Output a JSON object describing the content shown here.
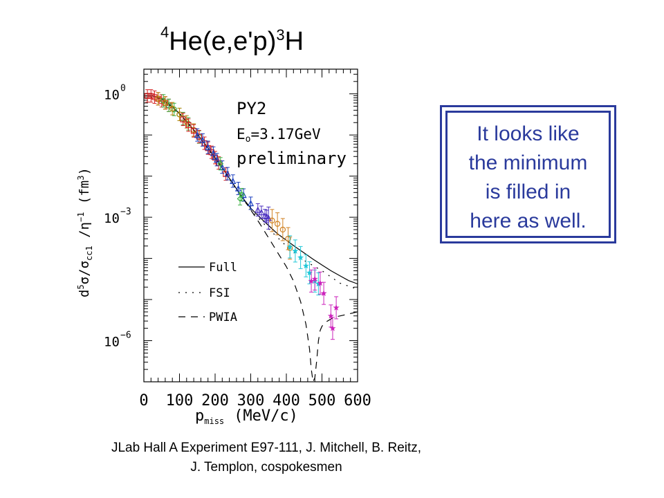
{
  "title": {
    "pre_sup": "4",
    "main": "He(e,e'p)",
    "post_sub": "3",
    "tail": "H"
  },
  "callout": {
    "lines": [
      "It looks like",
      "the minimum",
      "is filled  in",
      "here as well."
    ]
  },
  "credit": {
    "line1": "JLab Hall A Experiment E97-111, J. Mitchell, B. Reitz,",
    "line2": "J. Templon, cospokesmen"
  },
  "chart_data": {
    "type": "scatter",
    "xlabel": "p_miss (MeV/c)",
    "ylabel": "d^5σ/σ_cc1 / η^-1 (fm^3)",
    "xlim": [
      0,
      600
    ],
    "ylim_log10": [
      -7,
      0.6
    ],
    "x_ticks": [
      "0",
      "100",
      "200",
      "300",
      "400",
      "500",
      "600"
    ],
    "y_ticks": [
      {
        "value": 0,
        "label": "10",
        "exp": "0"
      },
      {
        "value": -3,
        "label": "10",
        "exp": "−3"
      },
      {
        "value": -6,
        "label": "10",
        "exp": "−6"
      }
    ],
    "annotation": {
      "kinematics": "PY2",
      "energy_label": "E",
      "energy_sub": "o",
      "energy_value": "=3.17GeV",
      "status": "preliminary"
    },
    "legend": [
      {
        "name": "Full",
        "style": "solid"
      },
      {
        "name": "FSI",
        "style": "dotted"
      },
      {
        "name": "PWIA",
        "style": "dashed"
      }
    ],
    "curves": [
      {
        "name": "Full",
        "style": "solid",
        "x": [
          0,
          25,
          50,
          75,
          100,
          125,
          150,
          175,
          200,
          225,
          250,
          275,
          300,
          325,
          350,
          375,
          400,
          425,
          450,
          475,
          500,
          525,
          550,
          575,
          600
        ],
        "log10y": [
          -0.05,
          -0.05,
          -0.12,
          -0.28,
          -0.48,
          -0.72,
          -0.98,
          -1.26,
          -1.55,
          -1.86,
          -2.18,
          -2.5,
          -2.78,
          -3.0,
          -3.2,
          -3.4,
          -3.56,
          -3.72,
          -3.87,
          -4.02,
          -4.16,
          -4.3,
          -4.42,
          -4.54,
          -4.62
        ]
      },
      {
        "name": "FSI",
        "style": "dotted",
        "x": [
          0,
          50,
          100,
          150,
          200,
          250,
          300,
          350,
          400,
          450,
          500,
          550,
          600
        ],
        "log10y": [
          -0.05,
          -0.13,
          -0.5,
          -1.0,
          -1.58,
          -2.2,
          -2.82,
          -3.28,
          -3.7,
          -4.05,
          -4.3,
          -4.6,
          -4.75
        ]
      },
      {
        "name": "PWIA",
        "style": "dashed",
        "x": [
          0,
          25,
          50,
          75,
          100,
          125,
          150,
          175,
          200,
          225,
          250,
          275,
          300,
          325,
          350,
          375,
          400,
          420,
          440,
          455,
          465,
          470,
          475,
          480,
          485,
          490,
          495,
          500,
          505,
          510,
          520,
          530,
          540,
          560,
          580,
          600
        ],
        "log10y": [
          -0.05,
          -0.05,
          -0.12,
          -0.28,
          -0.48,
          -0.72,
          -0.98,
          -1.26,
          -1.55,
          -1.86,
          -2.18,
          -2.5,
          -2.82,
          -3.15,
          -3.5,
          -3.85,
          -4.2,
          -4.55,
          -5.05,
          -5.6,
          -6.2,
          -6.7,
          -7.0,
          -6.9,
          -6.5,
          -6.0,
          -5.75,
          -5.65,
          -5.6,
          -5.55,
          -5.5,
          -5.45,
          -5.42,
          -5.38,
          -5.34,
          -5.3
        ]
      }
    ],
    "series": [
      {
        "name": "kin1",
        "color": "#d42020",
        "marker": "square",
        "x": [
          10,
          20,
          30,
          40,
          50,
          60,
          70
        ],
        "log10y": [
          -0.05,
          -0.05,
          -0.08,
          -0.12,
          -0.17,
          -0.22,
          -0.28
        ]
      },
      {
        "name": "kin2",
        "color": "#3cb043",
        "marker": "circle",
        "x": [
          55,
          70,
          85,
          100,
          110,
          125,
          140,
          155
        ],
        "log10y": [
          -0.17,
          -0.28,
          -0.38,
          -0.5,
          -0.6,
          -0.73,
          -0.88,
          -1.05
        ]
      },
      {
        "name": "kin3",
        "color": "#b8860b",
        "marker": "circle",
        "x": [
          40,
          60,
          80,
          100,
          120,
          140
        ],
        "log10y": [
          -0.12,
          -0.22,
          -0.36,
          -0.5,
          -0.68,
          -0.88
        ]
      },
      {
        "name": "kin4",
        "color": "#d42020",
        "marker": "square",
        "x": [
          110,
          125,
          140,
          155,
          170,
          180,
          190,
          200,
          210,
          230
        ],
        "log10y": [
          -0.62,
          -0.76,
          -0.9,
          -1.04,
          -1.2,
          -1.32,
          -1.42,
          -1.55,
          -1.68,
          -1.95
        ]
      },
      {
        "name": "kin5",
        "color": "#1a3fbf",
        "marker": "triangle",
        "x": [
          150,
          165,
          180,
          195,
          205,
          220,
          235,
          250,
          265,
          280,
          300
        ],
        "log10y": [
          -1.0,
          -1.12,
          -1.3,
          -1.44,
          -1.6,
          -1.78,
          -1.94,
          -2.12,
          -2.3,
          -2.46,
          -2.66
        ]
      },
      {
        "name": "kin6",
        "color": "#3cb043",
        "marker": "diamond",
        "x": [
          215,
          270,
          275
        ],
        "log10y": [
          -1.7,
          -2.55,
          -2.45
        ]
      },
      {
        "name": "kin7",
        "color": "#4a2fbf",
        "marker": "triangle",
        "x": [
          320,
          330,
          340,
          345,
          350
        ],
        "log10y": [
          -2.82,
          -2.88,
          -2.96,
          -2.98,
          -3.02
        ]
      },
      {
        "name": "kin8",
        "color": "#d08020",
        "marker": "circle",
        "x": [
          360,
          375,
          390,
          405,
          410
        ],
        "log10y": [
          -3.08,
          -3.16,
          -3.3,
          -3.52,
          -3.75
        ]
      },
      {
        "name": "kin9",
        "color": "#20c8d8",
        "marker": "star",
        "x": [
          410,
          425,
          440,
          455,
          465,
          480,
          490
        ],
        "log10y": [
          -3.72,
          -3.82,
          -3.98,
          -4.18,
          -4.35,
          -4.55,
          -4.62
        ]
      },
      {
        "name": "kin10",
        "color": "#cc22bb",
        "marker": "star",
        "x": [
          470,
          480,
          495,
          505,
          525,
          530,
          540
        ],
        "log10y": [
          -4.55,
          -4.5,
          -4.6,
          -4.85,
          -5.4,
          -5.7,
          -5.2
        ]
      }
    ]
  }
}
